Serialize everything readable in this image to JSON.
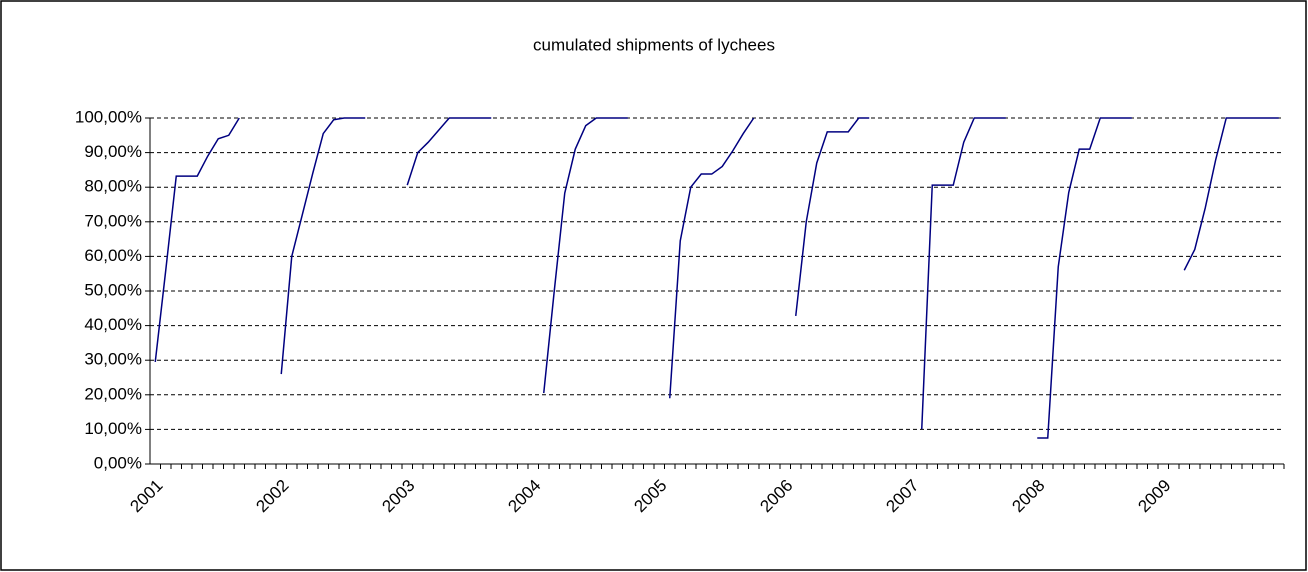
{
  "chart_data": {
    "type": "line",
    "title": "cumulated shipments of lychees",
    "categories": [
      "2001",
      null,
      null,
      null,
      null,
      null,
      null,
      null,
      null,
      null,
      null,
      null,
      "2002",
      null,
      null,
      null,
      null,
      null,
      null,
      null,
      null,
      null,
      null,
      null,
      "2003",
      null,
      null,
      null,
      null,
      null,
      null,
      null,
      null,
      null,
      null,
      null,
      "2004",
      null,
      null,
      null,
      null,
      null,
      null,
      null,
      null,
      null,
      null,
      null,
      "2005",
      null,
      null,
      null,
      null,
      null,
      null,
      null,
      null,
      null,
      null,
      null,
      "2006",
      null,
      null,
      null,
      null,
      null,
      null,
      null,
      null,
      null,
      null,
      null,
      "2007",
      null,
      null,
      null,
      null,
      null,
      null,
      null,
      null,
      null,
      null,
      null,
      "2008",
      null,
      null,
      null,
      null,
      null,
      null,
      null,
      null,
      null,
      null,
      null,
      "2009",
      null,
      null,
      null,
      null,
      null,
      null,
      null,
      null,
      null,
      null,
      null
    ],
    "values": [
      29.5,
      56,
      83.2,
      83.2,
      83.2,
      89,
      94,
      95,
      100,
      null,
      null,
      null,
      26,
      60,
      72,
      84,
      95.5,
      99.5,
      100,
      100,
      100,
      null,
      null,
      null,
      80.6,
      90,
      93,
      96.5,
      100,
      100,
      100,
      100,
      100,
      null,
      null,
      null,
      null,
      20.5,
      50,
      78.3,
      91,
      97.8,
      100,
      100,
      100,
      100,
      null,
      null,
      null,
      19,
      64.5,
      80,
      83.8,
      83.8,
      86,
      90.5,
      95.5,
      100,
      null,
      null,
      null,
      42.8,
      70,
      87,
      96,
      96,
      96,
      100,
      100,
      null,
      null,
      null,
      null,
      10.1,
      80.6,
      80.6,
      80.6,
      93,
      100,
      100,
      100,
      100,
      null,
      null,
      7.5,
      7.5,
      57,
      78.5,
      91,
      91,
      100,
      100,
      100,
      100,
      null,
      null,
      null,
      null,
      56,
      62,
      74,
      88,
      100,
      100,
      100,
      100,
      100,
      100
    ],
    "color": "#000080",
    "ylim": [
      0,
      100
    ],
    "yticks": [
      {
        "value": 0,
        "label": "0,00%"
      },
      {
        "value": 10,
        "label": "10,00%"
      },
      {
        "value": 20,
        "label": "20,00%"
      },
      {
        "value": 30,
        "label": "30,00%"
      },
      {
        "value": 40,
        "label": "40,00%"
      },
      {
        "value": 50,
        "label": "50,00%"
      },
      {
        "value": 60,
        "label": "60,00%"
      },
      {
        "value": 70,
        "label": "70,00%"
      },
      {
        "value": 80,
        "label": "80,00%"
      },
      {
        "value": 90,
        "label": "90,00%"
      },
      {
        "value": 100,
        "label": "100,00%"
      }
    ],
    "grid": true
  }
}
